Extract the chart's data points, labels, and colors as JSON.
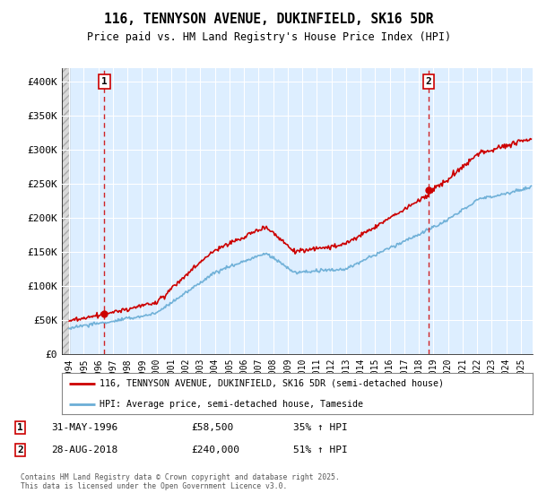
{
  "title": "116, TENNYSON AVENUE, DUKINFIELD, SK16 5DR",
  "subtitle": "Price paid vs. HM Land Registry's House Price Index (HPI)",
  "legend_line1": "116, TENNYSON AVENUE, DUKINFIELD, SK16 5DR (semi-detached house)",
  "legend_line2": "HPI: Average price, semi-detached house, Tameside",
  "footnote": "Contains HM Land Registry data © Crown copyright and database right 2025.\nThis data is licensed under the Open Government Licence v3.0.",
  "sale1_date": "31-MAY-1996",
  "sale1_price": 58500,
  "sale1_pct": "35% ↑ HPI",
  "sale2_date": "28-AUG-2018",
  "sale2_price": 240000,
  "sale2_pct": "51% ↑ HPI",
  "sale1_year": 1996.42,
  "sale2_year": 2018.65,
  "hpi_color": "#6baed6",
  "price_color": "#cc0000",
  "background_plot": "#ddeeff",
  "grid_color": "#ffffff",
  "ylim": [
    0,
    420000
  ],
  "xlim_start": 1993.5,
  "xlim_end": 2025.8,
  "yticks": [
    0,
    50000,
    100000,
    150000,
    200000,
    250000,
    300000,
    350000,
    400000
  ],
  "ytick_labels": [
    "£0",
    "£50K",
    "£100K",
    "£150K",
    "£200K",
    "£250K",
    "£300K",
    "£350K",
    "£400K"
  ],
  "xticks": [
    1994,
    1995,
    1996,
    1997,
    1998,
    1999,
    2000,
    2001,
    2002,
    2003,
    2004,
    2005,
    2006,
    2007,
    2008,
    2009,
    2010,
    2011,
    2012,
    2013,
    2014,
    2015,
    2016,
    2017,
    2018,
    2019,
    2020,
    2021,
    2022,
    2023,
    2024,
    2025
  ]
}
